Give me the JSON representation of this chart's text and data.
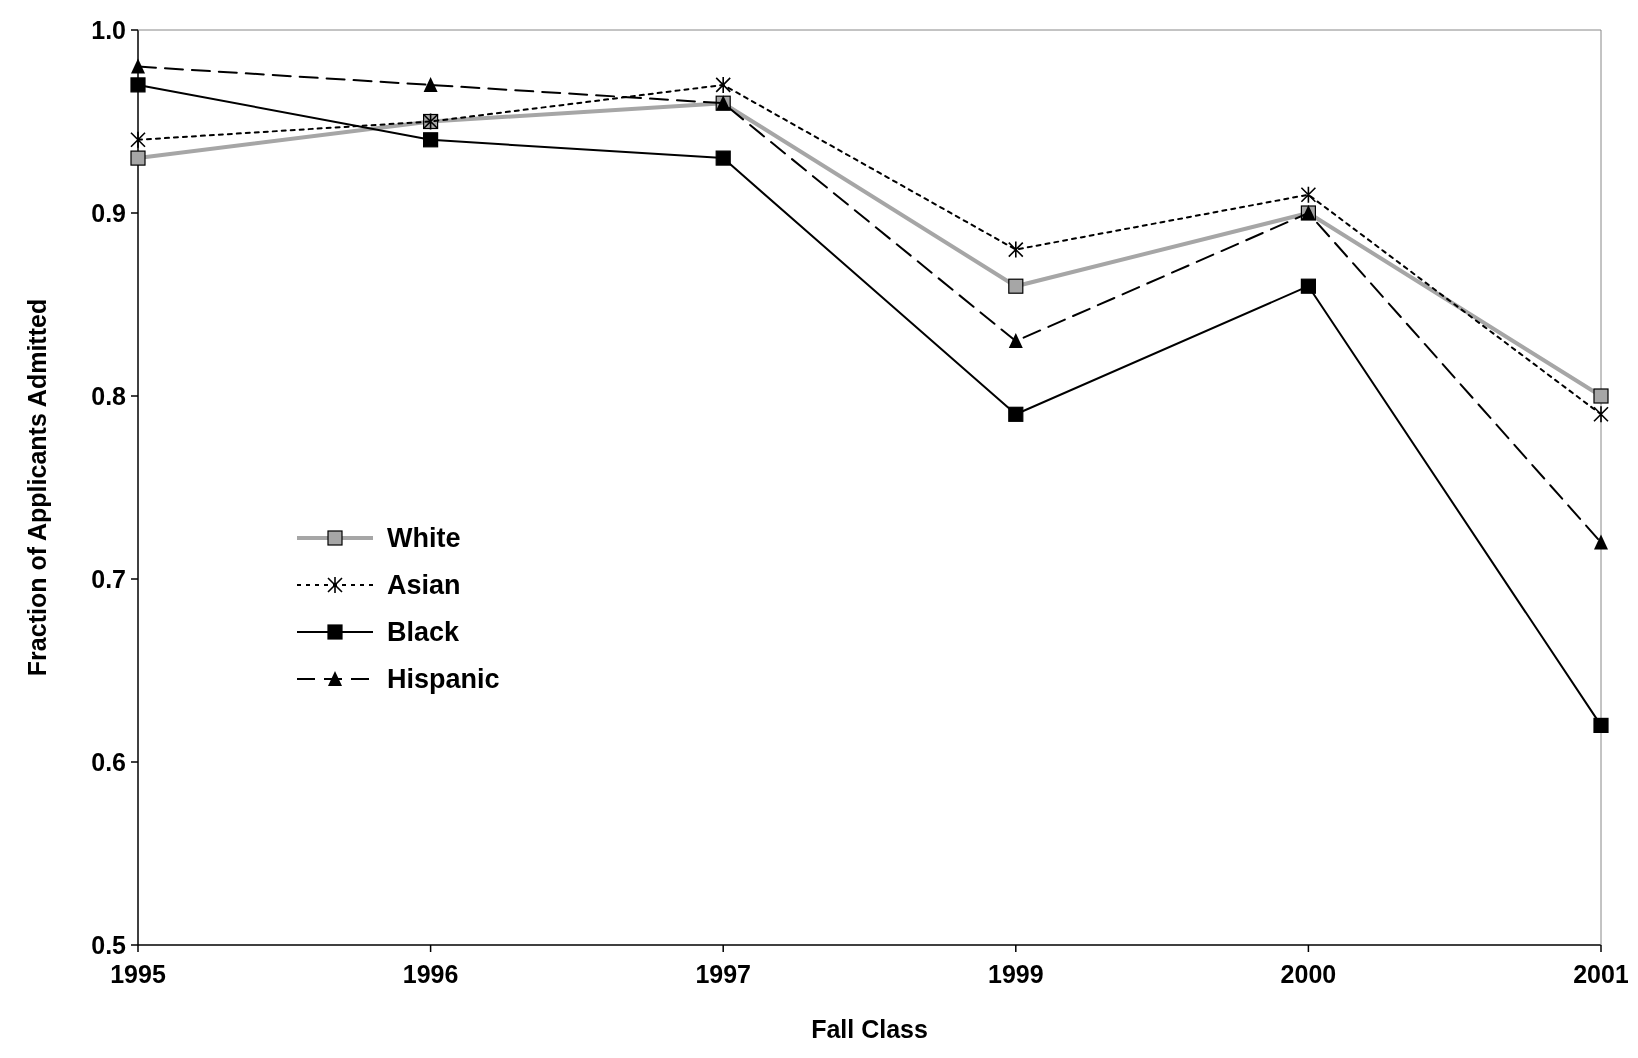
{
  "chart_data": {
    "type": "line",
    "xlabel": "Fall Class",
    "ylabel": "Fraction of Applicants Admitted",
    "categories": [
      "1995",
      "1996",
      "1997",
      "1999",
      "2000",
      "2001"
    ],
    "series": [
      {
        "name": "White",
        "color": "#a6a6a6",
        "marker": "square",
        "line_style": "solid",
        "values": [
          0.93,
          0.95,
          0.96,
          0.86,
          0.9,
          0.8
        ]
      },
      {
        "name": "Asian",
        "color": "#000000",
        "marker": "cross",
        "line_style": "dotted",
        "values": [
          0.94,
          0.95,
          0.97,
          0.88,
          0.91,
          0.79
        ]
      },
      {
        "name": "Black",
        "color": "#000000",
        "marker": "square",
        "line_style": "solid",
        "values": [
          0.97,
          0.94,
          0.93,
          0.79,
          0.86,
          0.62
        ]
      },
      {
        "name": "Hispanic",
        "color": "#000000",
        "marker": "triangle",
        "line_style": "dashed",
        "values": [
          0.98,
          0.97,
          0.96,
          0.83,
          0.9,
          0.72
        ]
      }
    ],
    "ylim": [
      0.5,
      1
    ],
    "yticks": [
      0.5,
      0.6,
      0.7,
      0.8,
      0.9,
      {
        "value": 1,
        "label": "1.0"
      }
    ],
    "grid": false,
    "legend": "center left"
  }
}
